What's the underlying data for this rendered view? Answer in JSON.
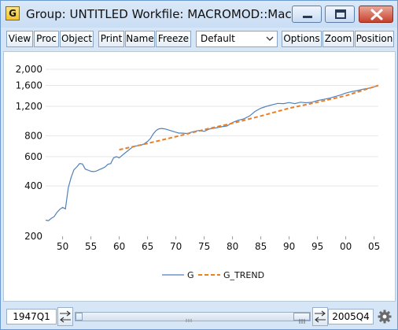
{
  "window": {
    "icon_letter": "G",
    "title": "Group: UNTITLED   Workfile: MACROMOD::Macro..."
  },
  "toolbar": {
    "view": "View",
    "proc": "Proc",
    "object": "Object",
    "print": "Print",
    "name": "Name",
    "freeze": "Freeze",
    "view_select": "Default",
    "options": "Options",
    "zoom": "Zoom",
    "position": "Position"
  },
  "statusbar": {
    "start": "1947Q1",
    "end": "2005Q4"
  },
  "chart_data": {
    "type": "line",
    "yscale": "log",
    "ylim": [
      200,
      2000
    ],
    "yticks": [
      200,
      400,
      600,
      800,
      1200,
      1600,
      2000
    ],
    "ytick_labels": [
      "200",
      "400",
      "600",
      "800",
      "1,200",
      "1,600",
      "2,000"
    ],
    "xlim": [
      1947.0,
      2005.75
    ],
    "xticks": [
      1950,
      1955,
      1960,
      1965,
      1970,
      1975,
      1980,
      1985,
      1990,
      1995,
      2000,
      2005
    ],
    "xtick_labels": [
      "50",
      "55",
      "60",
      "65",
      "70",
      "75",
      "80",
      "85",
      "90",
      "95",
      "00",
      "05"
    ],
    "series": [
      {
        "name": "G",
        "color": "#4f81bd",
        "style": "solid",
        "x": [
          1947.0,
          1947.5,
          1948.0,
          1948.5,
          1949.0,
          1949.5,
          1950.0,
          1950.5,
          1951.0,
          1951.5,
          1952.0,
          1952.5,
          1953.0,
          1953.5,
          1954.0,
          1954.5,
          1955.0,
          1955.5,
          1956.0,
          1956.5,
          1957.0,
          1957.5,
          1958.0,
          1958.5,
          1959.0,
          1959.5,
          1960.0,
          1960.5,
          1961.0,
          1961.5,
          1962.0,
          1962.5,
          1963.0,
          1963.5,
          1964.0,
          1964.5,
          1965.0,
          1965.5,
          1966.0,
          1966.5,
          1967.0,
          1967.5,
          1968.0,
          1968.5,
          1969.0,
          1969.5,
          1970.0,
          1970.5,
          1971.0,
          1972.0,
          1973.0,
          1974.0,
          1975.0,
          1976.0,
          1977.0,
          1978.0,
          1979.0,
          1980.0,
          1981.0,
          1982.0,
          1983.0,
          1984.0,
          1985.0,
          1986.0,
          1987.0,
          1988.0,
          1989.0,
          1990.0,
          1991.0,
          1992.0,
          1993.0,
          1994.0,
          1995.0,
          1996.0,
          1997.0,
          1998.0,
          1999.0,
          2000.0,
          2001.0,
          2002.0,
          2003.0,
          2004.0,
          2005.0,
          2005.75
        ],
        "y": [
          250,
          248,
          256,
          262,
          278,
          290,
          298,
          292,
          390,
          450,
          500,
          520,
          545,
          542,
          505,
          498,
          490,
          488,
          492,
          502,
          510,
          520,
          540,
          545,
          590,
          600,
          590,
          610,
          630,
          650,
          670,
          690,
          695,
          700,
          705,
          720,
          740,
          770,
          820,
          860,
          880,
          885,
          880,
          870,
          860,
          850,
          840,
          830,
          830,
          825,
          845,
          860,
          850,
          880,
          890,
          905,
          915,
          960,
          990,
          1010,
          1050,
          1120,
          1170,
          1200,
          1225,
          1250,
          1245,
          1265,
          1245,
          1270,
          1260,
          1270,
          1300,
          1320,
          1340,
          1370,
          1400,
          1440,
          1470,
          1490,
          1520,
          1540,
          1570,
          1600
        ]
      },
      {
        "name": "G_TREND",
        "color": "#e8802a",
        "style": "dashed",
        "x": [
          1960.0,
          1965.0,
          1970.0,
          1975.0,
          1980.0,
          1985.0,
          1990.0,
          1995.0,
          2000.0,
          2005.75
        ],
        "y": [
          660,
          720,
          790,
          870,
          950,
          1050,
          1170,
          1270,
          1390,
          1600
        ]
      }
    ],
    "legend_position": "bottom-center",
    "grid": "horizontal"
  }
}
